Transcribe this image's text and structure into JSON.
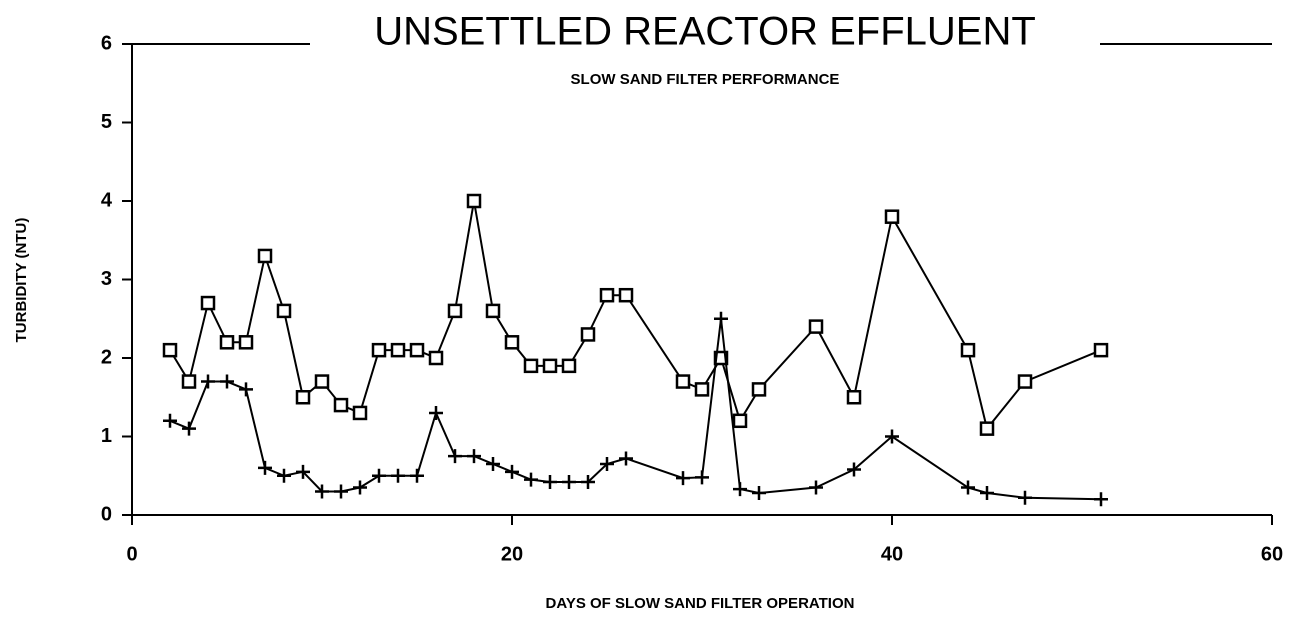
{
  "chart_data": {
    "type": "line",
    "title": "UNSETTLED REACTOR EFFLUENT",
    "subtitle": "SLOW SAND FILTER PERFORMANCE",
    "x_label": "DAYS OF SLOW SAND FILTER OPERATION",
    "y_label": "TURBIDITY (NTU)",
    "x": [
      2,
      3,
      4,
      5,
      6,
      7,
      8,
      9,
      10,
      11,
      12,
      13,
      14,
      15,
      16,
      17,
      18,
      19,
      20,
      21,
      22,
      23,
      24,
      25,
      26,
      29,
      30,
      31,
      32,
      33,
      36,
      38,
      40,
      44,
      45,
      47,
      51
    ],
    "series": [
      {
        "color": "#000000",
        "marker": "square",
        "values": [
          2.1,
          1.7,
          2.7,
          2.2,
          2.2,
          3.3,
          2.6,
          1.5,
          1.7,
          1.4,
          1.3,
          2.1,
          2.1,
          2.1,
          2.0,
          2.6,
          4.0,
          2.6,
          2.2,
          1.9,
          1.9,
          1.9,
          2.3,
          2.8,
          2.8,
          1.7,
          1.6,
          2.0,
          1.2,
          1.6,
          2.4,
          1.5,
          3.8,
          2.1,
          1.1,
          1.7,
          2.1
        ]
      },
      {
        "color": "#000000",
        "marker": "plus",
        "values": [
          1.2,
          1.1,
          1.7,
          1.7,
          1.6,
          0.6,
          0.5,
          0.55,
          0.3,
          0.3,
          0.35,
          0.5,
          0.5,
          0.5,
          1.3,
          0.75,
          0.75,
          0.65,
          0.55,
          0.45,
          0.42,
          0.42,
          0.42,
          0.65,
          0.72,
          0.47,
          0.48,
          2.5,
          0.33,
          0.28,
          0.35,
          0.58,
          1.0,
          0.35,
          0.28,
          0.22,
          0.2
        ]
      }
    ],
    "xlim": [
      0,
      60
    ],
    "xticks": [
      0,
      20,
      40,
      60
    ],
    "ylim": [
      0,
      6
    ],
    "yticks": [
      0,
      1,
      2,
      3,
      4,
      5,
      6
    ]
  }
}
